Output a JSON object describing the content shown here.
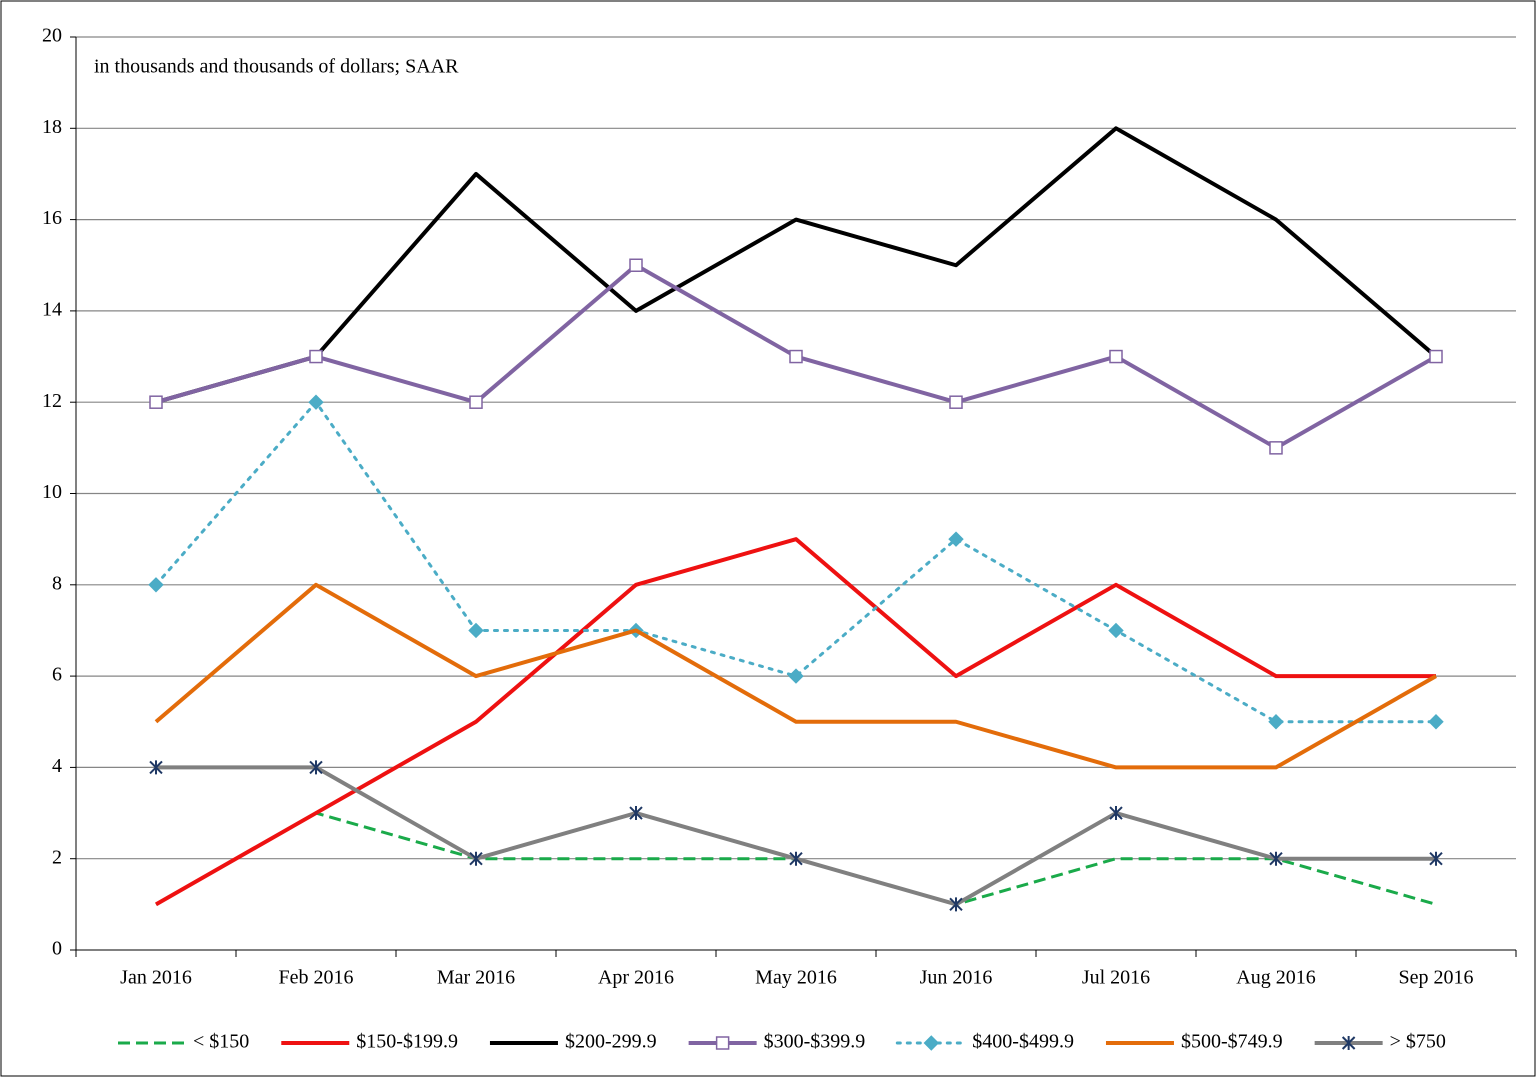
{
  "chart_data": {
    "type": "line",
    "annotation": "in thousands and thousands of dollars; SAAR",
    "categories": [
      "Jan 2016",
      "Feb 2016",
      "Mar 2016",
      "Apr 2016",
      "May 2016",
      "Jun 2016",
      "Jul 2016",
      "Aug 2016",
      "Sep 2016"
    ],
    "series": [
      {
        "name": "< $150",
        "color": "#1aaa4a",
        "line_style": "dashed",
        "marker": "none",
        "values": [
          1,
          3,
          2,
          2,
          2,
          1,
          2,
          2,
          1
        ]
      },
      {
        "name": "$150-$199.9",
        "color": "#ee1111",
        "line_style": "solid",
        "marker": "none",
        "values": [
          1,
          3,
          5,
          8,
          9,
          6,
          8,
          6,
          6
        ]
      },
      {
        "name": "$200-299.9",
        "color": "#000000",
        "line_style": "solid",
        "marker": "none",
        "values": [
          12,
          13,
          17,
          14,
          16,
          15,
          18,
          16,
          13
        ]
      },
      {
        "name": "$300-$399.9",
        "color": "#8064a2",
        "line_style": "solid",
        "marker": "square",
        "values": [
          12,
          13,
          12,
          15,
          13,
          12,
          13,
          11,
          13
        ]
      },
      {
        "name": "$400-$499.9",
        "color": "#4bacc6",
        "line_style": "dotted",
        "marker": "diamond",
        "values": [
          8,
          12,
          7,
          7,
          6,
          9,
          7,
          5,
          5
        ]
      },
      {
        "name": "$500-$749.9",
        "color": "#e36c0a",
        "line_style": "solid",
        "marker": "none",
        "values": [
          5,
          8,
          6,
          7,
          5,
          5,
          4,
          4,
          6
        ]
      },
      {
        "name": "> $750",
        "color": "#808080",
        "line_style": "solid",
        "marker": "star",
        "values": [
          4,
          4,
          2,
          3,
          2,
          1,
          3,
          2,
          2
        ]
      }
    ],
    "ylim": [
      0,
      20
    ],
    "yticks": [
      0,
      2,
      4,
      6,
      8,
      10,
      12,
      14,
      16,
      18,
      20
    ],
    "grid": true,
    "legend": "bottom"
  }
}
